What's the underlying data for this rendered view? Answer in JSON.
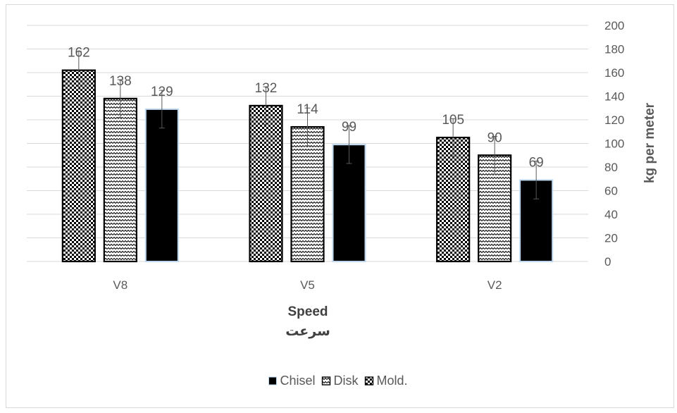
{
  "chart_data": {
    "type": "bar",
    "categories": [
      "V8",
      "V5",
      "V2"
    ],
    "series": [
      {
        "name": "Mold.",
        "pattern": "checker",
        "values": [
          162,
          132,
          105
        ],
        "errors": [
          16,
          16,
          16
        ]
      },
      {
        "name": "Disk",
        "pattern": "zigzag",
        "values": [
          138,
          114,
          90
        ],
        "errors": [
          16,
          16,
          16
        ]
      },
      {
        "name": "Chisel",
        "pattern": "solid",
        "values": [
          129,
          99,
          69
        ],
        "errors": [
          16,
          16,
          16
        ]
      }
    ],
    "legend_order": [
      "Chisel",
      "Disk",
      "Mold."
    ],
    "xlabel": "Speed",
    "xlabel_secondary": "سرعت",
    "ylabel": "kg per meter",
    "ylim": [
      0,
      200
    ],
    "yticks": [
      0,
      20,
      40,
      60,
      80,
      100,
      120,
      140,
      160,
      180,
      200
    ],
    "y_axis_position": "right",
    "grid": true,
    "legend_position": "bottom",
    "colors": {
      "bar_fill": "#000000",
      "bar_border": "#bdd7ee",
      "grid": "#d9d9d9",
      "text": "#595959",
      "axis_title": "#404040",
      "frame": "#d9d9d9"
    }
  }
}
